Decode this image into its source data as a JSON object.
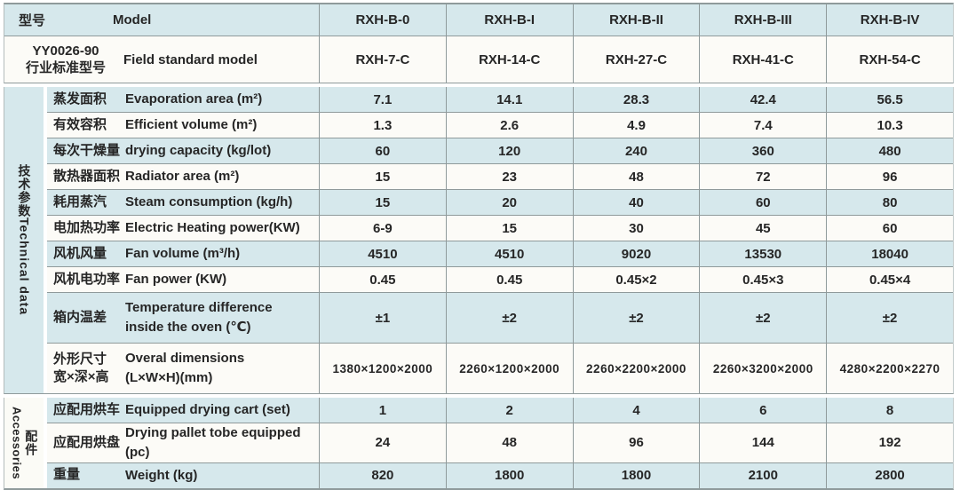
{
  "table": {
    "colors": {
      "row_blue": "#d6e8ec",
      "row_white": "#fcfbf7",
      "grid_line": "#8f9a9b",
      "text": "#262626"
    },
    "header": {
      "zh": "型号",
      "en": "Model",
      "models": [
        "RXH-B-0",
        "RXH-B-I",
        "RXH-B-II",
        "RXH-B-III",
        "RXH-B-IV"
      ]
    },
    "standard": {
      "zh": "YY0026-90\n行业标准型号",
      "en": "Field standard model",
      "values": [
        "RXH-7-C",
        "RXH-14-C",
        "RXH-27-C",
        "RXH-41-C",
        "RXH-54-C"
      ]
    },
    "sections": [
      {
        "label_zh": "技术参数",
        "label_en": "Technical data",
        "rows": [
          {
            "zh": "蒸发面积",
            "en": "Evaporation area (m²)",
            "values": [
              "7.1",
              "14.1",
              "28.3",
              "42.4",
              "56.5"
            ]
          },
          {
            "zh": "有效容积",
            "en": "Efficient volume (m²)",
            "values": [
              "1.3",
              "2.6",
              "4.9",
              "7.4",
              "10.3"
            ]
          },
          {
            "zh": "每次干燥量",
            "en": "drying capacity (kg/lot)",
            "values": [
              "60",
              "120",
              "240",
              "360",
              "480"
            ]
          },
          {
            "zh": "散热器面积",
            "en": "Radiator area (m²)",
            "values": [
              "15",
              "23",
              "48",
              "72",
              "96"
            ]
          },
          {
            "zh": "耗用蒸汽",
            "en": "Steam consumption (kg/h)",
            "values": [
              "15",
              "20",
              "40",
              "60",
              "80"
            ]
          },
          {
            "zh": "电加热功率",
            "en": "Electric Heating power(KW)",
            "values": [
              "6-9",
              "15",
              "30",
              "45",
              "60"
            ]
          },
          {
            "zh": "风机风量",
            "en": "Fan volume (m³/h)",
            "values": [
              "4510",
              "4510",
              "9020",
              "13530",
              "18040"
            ]
          },
          {
            "zh": "风机电功率",
            "en": "Fan power (KW)",
            "values": [
              "0.45",
              "0.45",
              "0.45×2",
              "0.45×3",
              "0.45×4"
            ]
          },
          {
            "zh": "箱内温差",
            "en": "Temperature difference\ninside the oven (℃)",
            "tall": true,
            "values": [
              "±1",
              "±2",
              "±2",
              "±2",
              "±2"
            ]
          },
          {
            "zh": "外形尺寸\n宽×深×高",
            "en": "Overal dimensions\n(L×W×H)(mm)",
            "tall": true,
            "small_values": true,
            "values": [
              "1380×1200×2000",
              "2260×1200×2000",
              "2260×2200×2000",
              "2260×3200×2000",
              "4280×2200×2270"
            ]
          }
        ]
      },
      {
        "label_zh": "配件",
        "label_en": "Accessories",
        "rows": [
          {
            "zh": "应配用烘车",
            "en": "Equipped drying cart (set)",
            "values": [
              "1",
              "2",
              "4",
              "6",
              "8"
            ]
          },
          {
            "zh": "应配用烘盘",
            "en": "Drying pallet tobe equipped (pc)",
            "values": [
              "24",
              "48",
              "96",
              "144",
              "192"
            ]
          },
          {
            "zh": "重量",
            "en": "Weight (kg)",
            "values": [
              "820",
              "1800",
              "1800",
              "2100",
              "2800"
            ]
          }
        ]
      }
    ]
  }
}
